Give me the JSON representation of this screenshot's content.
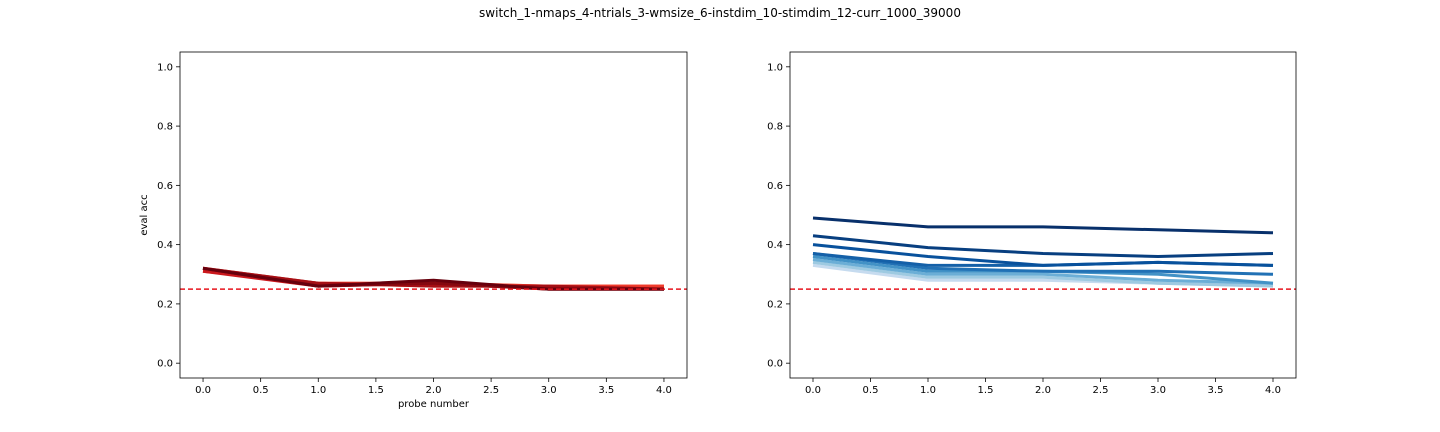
{
  "suptitle": "switch_1-nmaps_4-ntrials_3-wmsize_6-instdim_10-stimdim_12-curr_1000_39000",
  "chart_data": [
    {
      "type": "line",
      "title": "",
      "xlabel": "probe number",
      "ylabel": "eval acc",
      "xlim": [
        -0.2,
        4.2
      ],
      "ylim": [
        -0.05,
        1.05
      ],
      "xticks": [
        "0.0",
        "0.5",
        "1.0",
        "1.5",
        "2.0",
        "2.5",
        "3.0",
        "3.5",
        "4.0"
      ],
      "yticks": [
        "0.0",
        "0.2",
        "0.4",
        "0.6",
        "0.8",
        "1.0"
      ],
      "x": [
        0,
        1,
        2,
        3,
        4
      ],
      "chance_line": 0.25,
      "chance_color": "#e8141c",
      "colormap": "reds",
      "series": [
        {
          "values": [
            0.31,
            0.27,
            0.27,
            0.26,
            0.26
          ],
          "color": "#fc9272"
        },
        {
          "values": [
            0.31,
            0.27,
            0.26,
            0.26,
            0.26
          ],
          "color": "#fb6a4a"
        },
        {
          "values": [
            0.32,
            0.27,
            0.27,
            0.26,
            0.26
          ],
          "color": "#ef3b2c"
        },
        {
          "values": [
            0.31,
            0.26,
            0.27,
            0.25,
            0.25
          ],
          "color": "#cb181d"
        },
        {
          "values": [
            0.32,
            0.27,
            0.26,
            0.26,
            0.25
          ],
          "color": "#a50f15"
        },
        {
          "values": [
            0.32,
            0.26,
            0.27,
            0.25,
            0.25
          ],
          "color": "#860810"
        },
        {
          "values": [
            0.32,
            0.26,
            0.28,
            0.25,
            0.25
          ],
          "color": "#67000d"
        }
      ]
    },
    {
      "type": "line",
      "title": "",
      "xlabel": "",
      "ylabel": "",
      "xlim": [
        -0.2,
        4.2
      ],
      "ylim": [
        -0.05,
        1.05
      ],
      "xticks": [
        "0.0",
        "0.5",
        "1.0",
        "1.5",
        "2.0",
        "2.5",
        "3.0",
        "3.5",
        "4.0"
      ],
      "yticks": [
        "0.0",
        "0.2",
        "0.4",
        "0.6",
        "0.8",
        "1.0"
      ],
      "x": [
        0,
        1,
        2,
        3,
        4
      ],
      "chance_line": 0.25,
      "chance_color": "#e8141c",
      "colormap": "blues",
      "series": [
        {
          "values": [
            0.33,
            0.28,
            0.28,
            0.27,
            0.26
          ],
          "color": "#c6dbef"
        },
        {
          "values": [
            0.34,
            0.29,
            0.29,
            0.27,
            0.26
          ],
          "color": "#9ecae1"
        },
        {
          "values": [
            0.35,
            0.3,
            0.3,
            0.28,
            0.27
          ],
          "color": "#6baed6"
        },
        {
          "values": [
            0.36,
            0.31,
            0.31,
            0.3,
            0.27
          ],
          "color": "#4292c6"
        },
        {
          "values": [
            0.37,
            0.32,
            0.31,
            0.31,
            0.3
          ],
          "color": "#2171b5"
        },
        {
          "values": [
            0.37,
            0.33,
            0.33,
            0.34,
            0.33
          ],
          "color": "#1460a8"
        },
        {
          "values": [
            0.4,
            0.36,
            0.33,
            0.34,
            0.33
          ],
          "color": "#08519c"
        },
        {
          "values": [
            0.43,
            0.39,
            0.37,
            0.36,
            0.37
          ],
          "color": "#083f80"
        },
        {
          "values": [
            0.49,
            0.46,
            0.46,
            0.45,
            0.44
          ],
          "color": "#08306b"
        }
      ]
    }
  ]
}
